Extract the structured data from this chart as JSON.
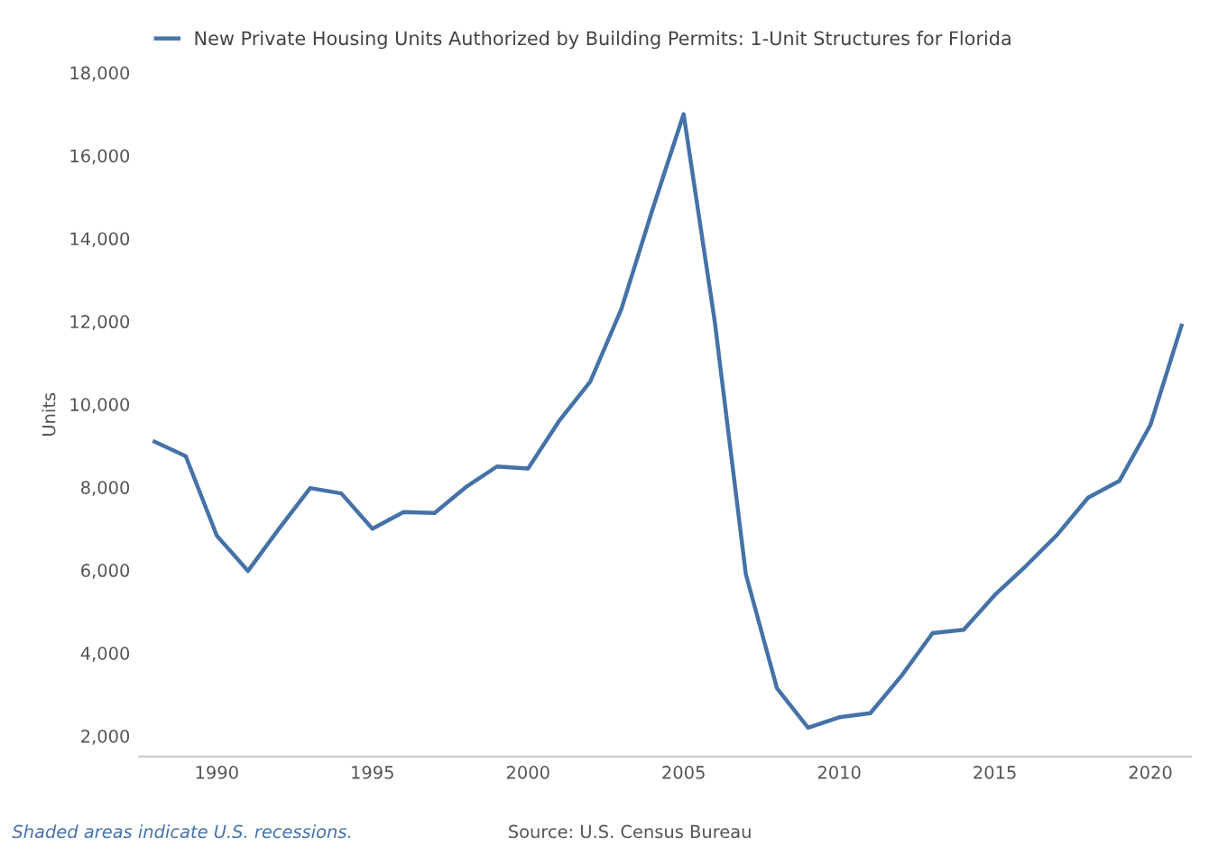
{
  "chart_data": {
    "type": "line",
    "ylabel": "Units",
    "legend": "top left",
    "grid": false,
    "x": [
      1988,
      1989,
      1990,
      1991,
      1992,
      1993,
      1994,
      1995,
      1996,
      1997,
      1998,
      1999,
      2000,
      2001,
      2002,
      2003,
      2004,
      2005,
      2006,
      2007,
      2008,
      2009,
      2010,
      2011,
      2012,
      2013,
      2014,
      2015,
      2016,
      2017,
      2018,
      2019,
      2020,
      2021
    ],
    "series": [
      {
        "name": "New Private Housing Units Authorized by Building Permits: 1-Unit Structures for Florida",
        "color": "#4572a7",
        "values": [
          9100,
          8750,
          6830,
          5980,
          7000,
          7980,
          7850,
          7000,
          7400,
          7380,
          8000,
          8500,
          8450,
          9600,
          10550,
          12300,
          14700,
          17000,
          12000,
          5900,
          3150,
          2200,
          2450,
          2550,
          3450,
          4480,
          4560,
          5400,
          6100,
          6850,
          7750,
          8150,
          9500,
          11900
        ]
      }
    ],
    "xlim": [
      1987.5,
      2021.3
    ],
    "xticks": [
      1990,
      1995,
      2000,
      2005,
      2010,
      2015,
      2020
    ],
    "ylim": [
      1500,
      18000
    ],
    "yticks": [
      {
        "value": 2000,
        "label": "2,000"
      },
      {
        "value": 4000,
        "label": "4,000"
      },
      {
        "value": 6000,
        "label": "6,000"
      },
      {
        "value": 8000,
        "label": "8,000"
      },
      {
        "value": 10000,
        "label": "10,000"
      },
      {
        "value": 12000,
        "label": "12,000"
      },
      {
        "value": 14000,
        "label": "14,000"
      },
      {
        "value": 16000,
        "label": "16,000"
      },
      {
        "value": 18000,
        "label": "18,000"
      }
    ],
    "annotations": [
      "Shaded areas indicate U.S. recessions.",
      "Source: U.S. Census Bureau"
    ]
  }
}
